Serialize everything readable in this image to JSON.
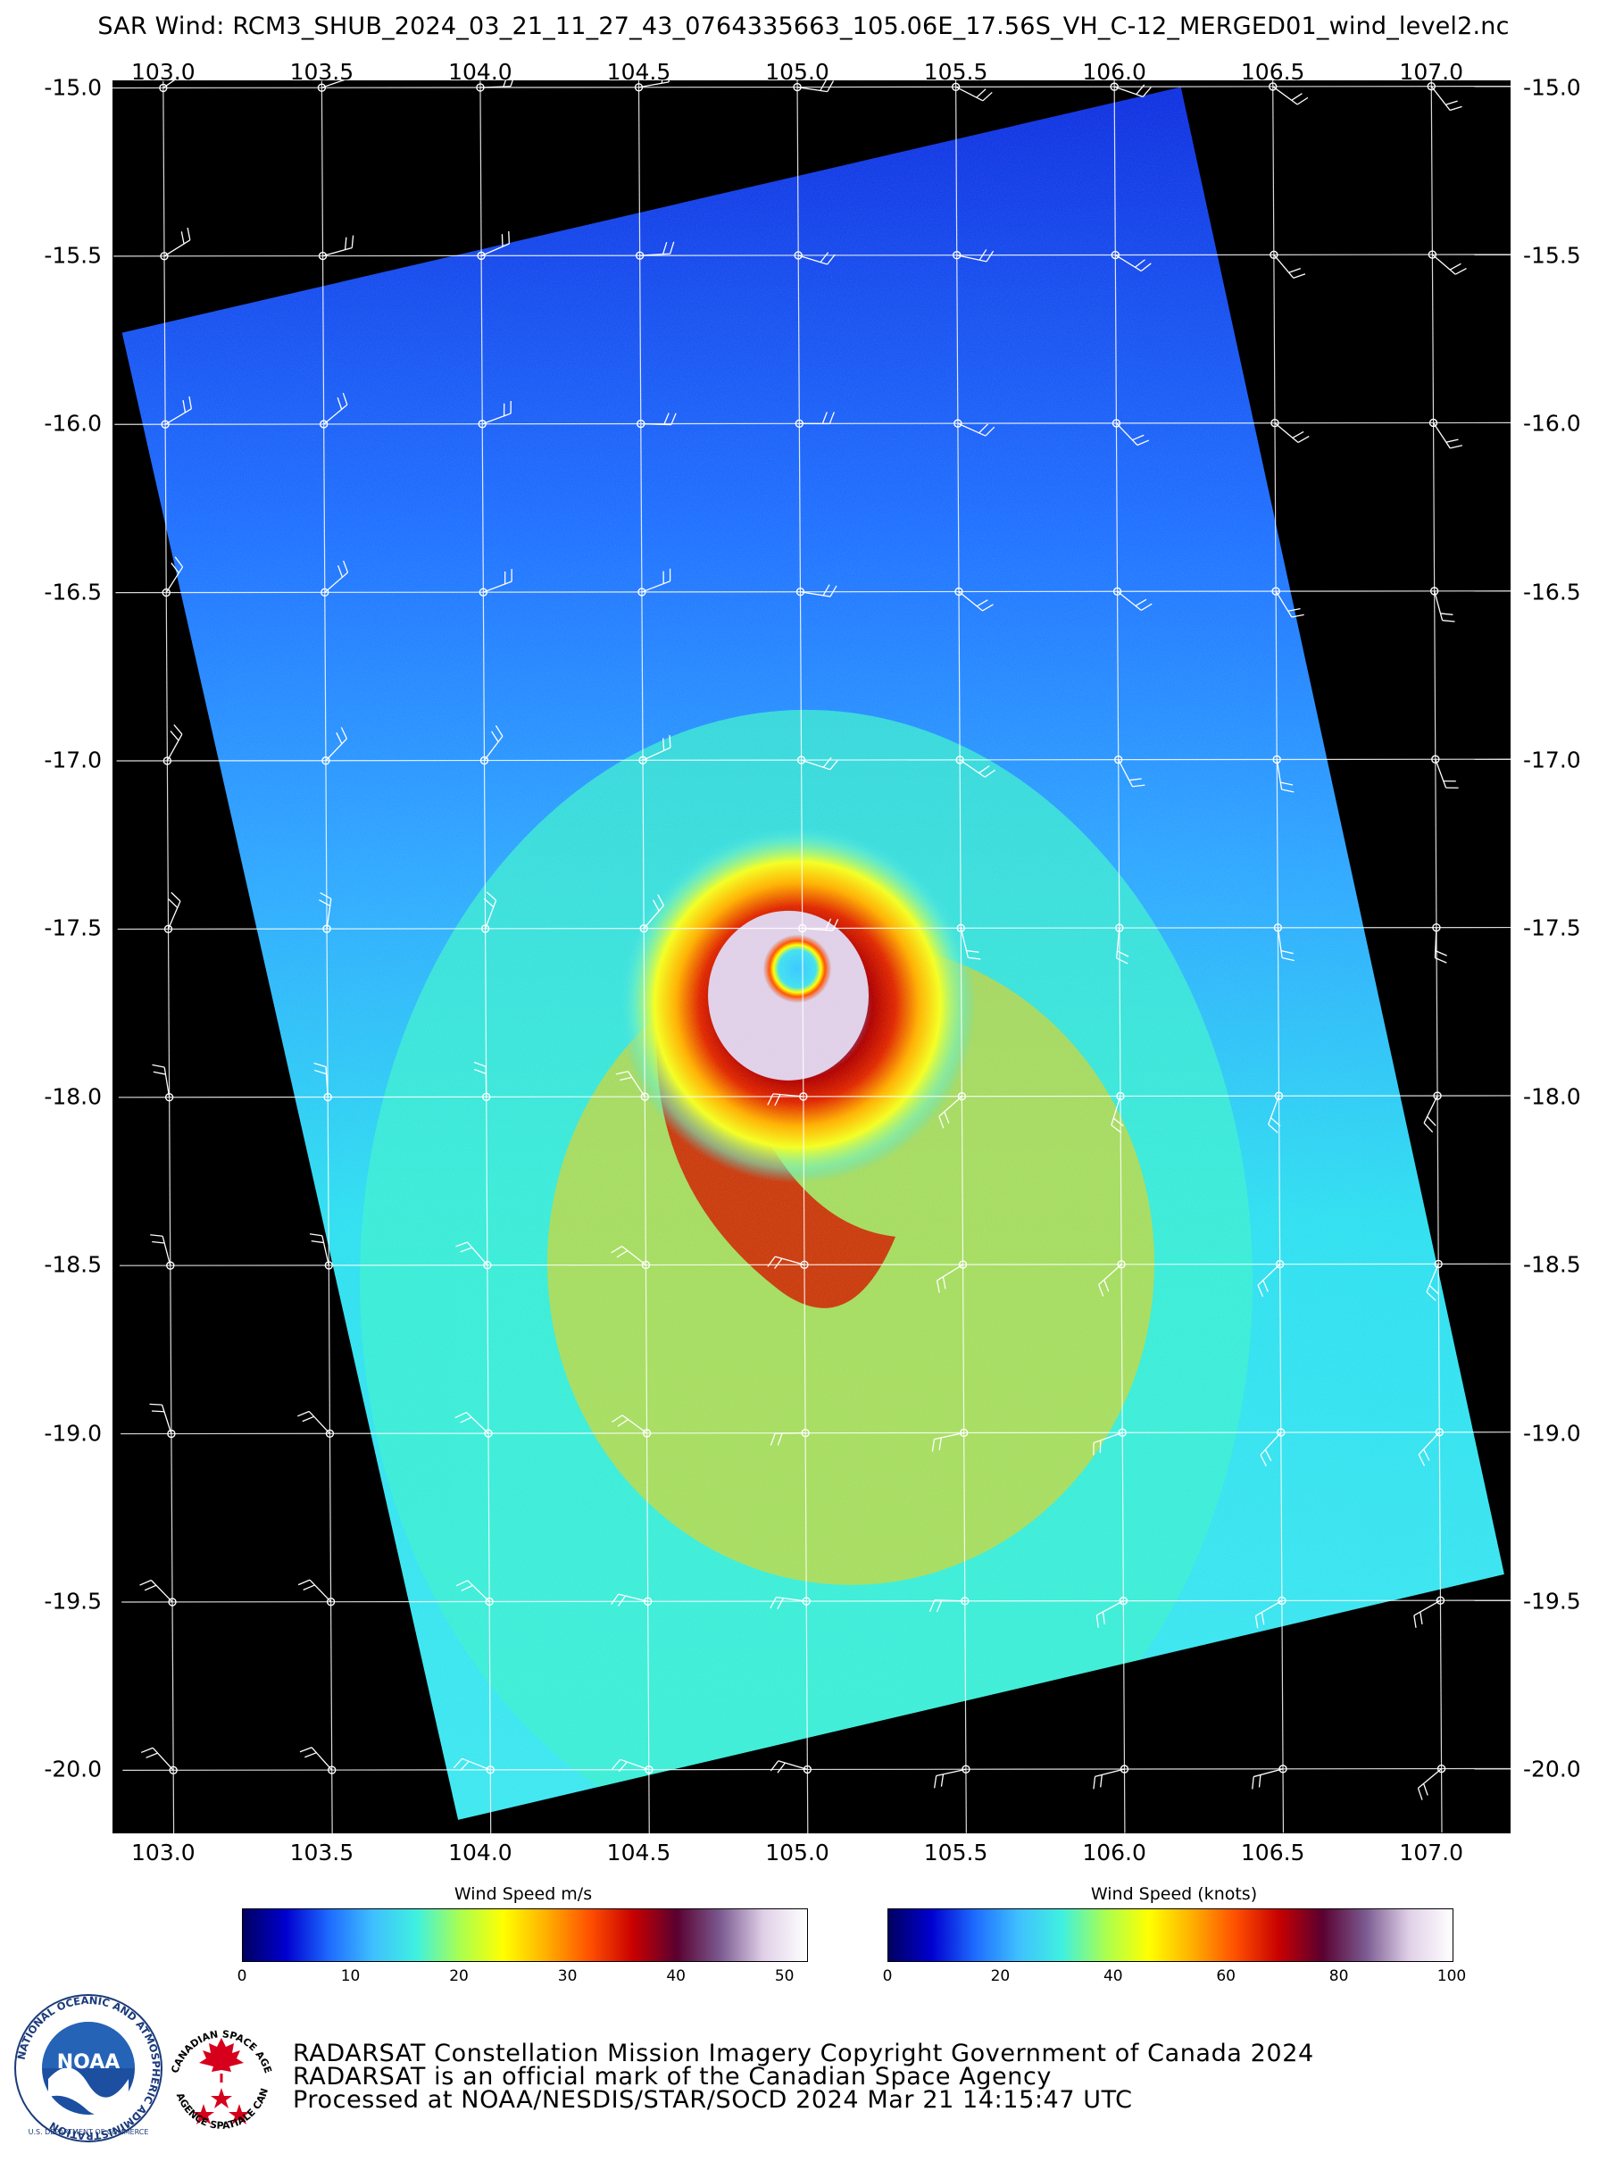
{
  "title": "SAR Wind: RCM3_SHUB_2024_03_21_11_27_43_0764335663_105.06E_17.56S_VH_C-12_MERGED01_wind_level2.nc",
  "map": {
    "lon_ticks": [
      "103.0",
      "103.5",
      "104.0",
      "104.5",
      "105.0",
      "105.5",
      "106.0",
      "106.5",
      "107.0"
    ],
    "lat_ticks": [
      "-15.0",
      "-15.5",
      "-16.0",
      "-16.5",
      "-17.0",
      "-17.5",
      "-18.0",
      "-18.5",
      "-19.0",
      "-19.5",
      "-20.0"
    ],
    "lon_range": [
      102.84,
      107.25
    ],
    "lat_range": [
      -14.98,
      -20.19
    ],
    "storm_center": {
      "lon": 105.0,
      "lat": -17.7
    },
    "background": "#000000"
  },
  "colorbars": {
    "ms": {
      "label": "Wind Speed m/s",
      "ticks": [
        "0",
        "10",
        "20",
        "30",
        "40",
        "50"
      ],
      "range": [
        0,
        52
      ]
    },
    "knots": {
      "label": "Wind Speed (knots)",
      "ticks": [
        "0",
        "20",
        "40",
        "60",
        "80",
        "100"
      ],
      "range": [
        0,
        100
      ]
    },
    "colors": [
      "#000060",
      "#0000d0",
      "#1e6cff",
      "#3fc0ff",
      "#3ff0e0",
      "#aaff50",
      "#ffff00",
      "#ffb000",
      "#ff5000",
      "#c80000",
      "#5a0030",
      "#7a5a90",
      "#e0d0e8",
      "#ffffff"
    ]
  },
  "logos": {
    "noaa": {
      "center_text": "NOAA",
      "ring_text": "NATIONAL OCEANIC AND ATMOSPHERIC ADMINISTRATION",
      "bottom_text": "U.S. DEPARTMENT OF COMMERCE"
    },
    "csa": {
      "top_text": "CANADIAN SPACE AGENCY",
      "bottom_text": "AGENCE SPATIALE CANADIENNE"
    }
  },
  "footer": {
    "line1": "RADARSAT Constellation Mission Imagery Copyright Government of Canada 2024",
    "line2": "RADARSAT is an official mark of the Canadian Space Agency",
    "line3": "Processed at NOAA/NESDIS/STAR/SOCD 2024 Mar 21 14:15:47 UTC"
  }
}
